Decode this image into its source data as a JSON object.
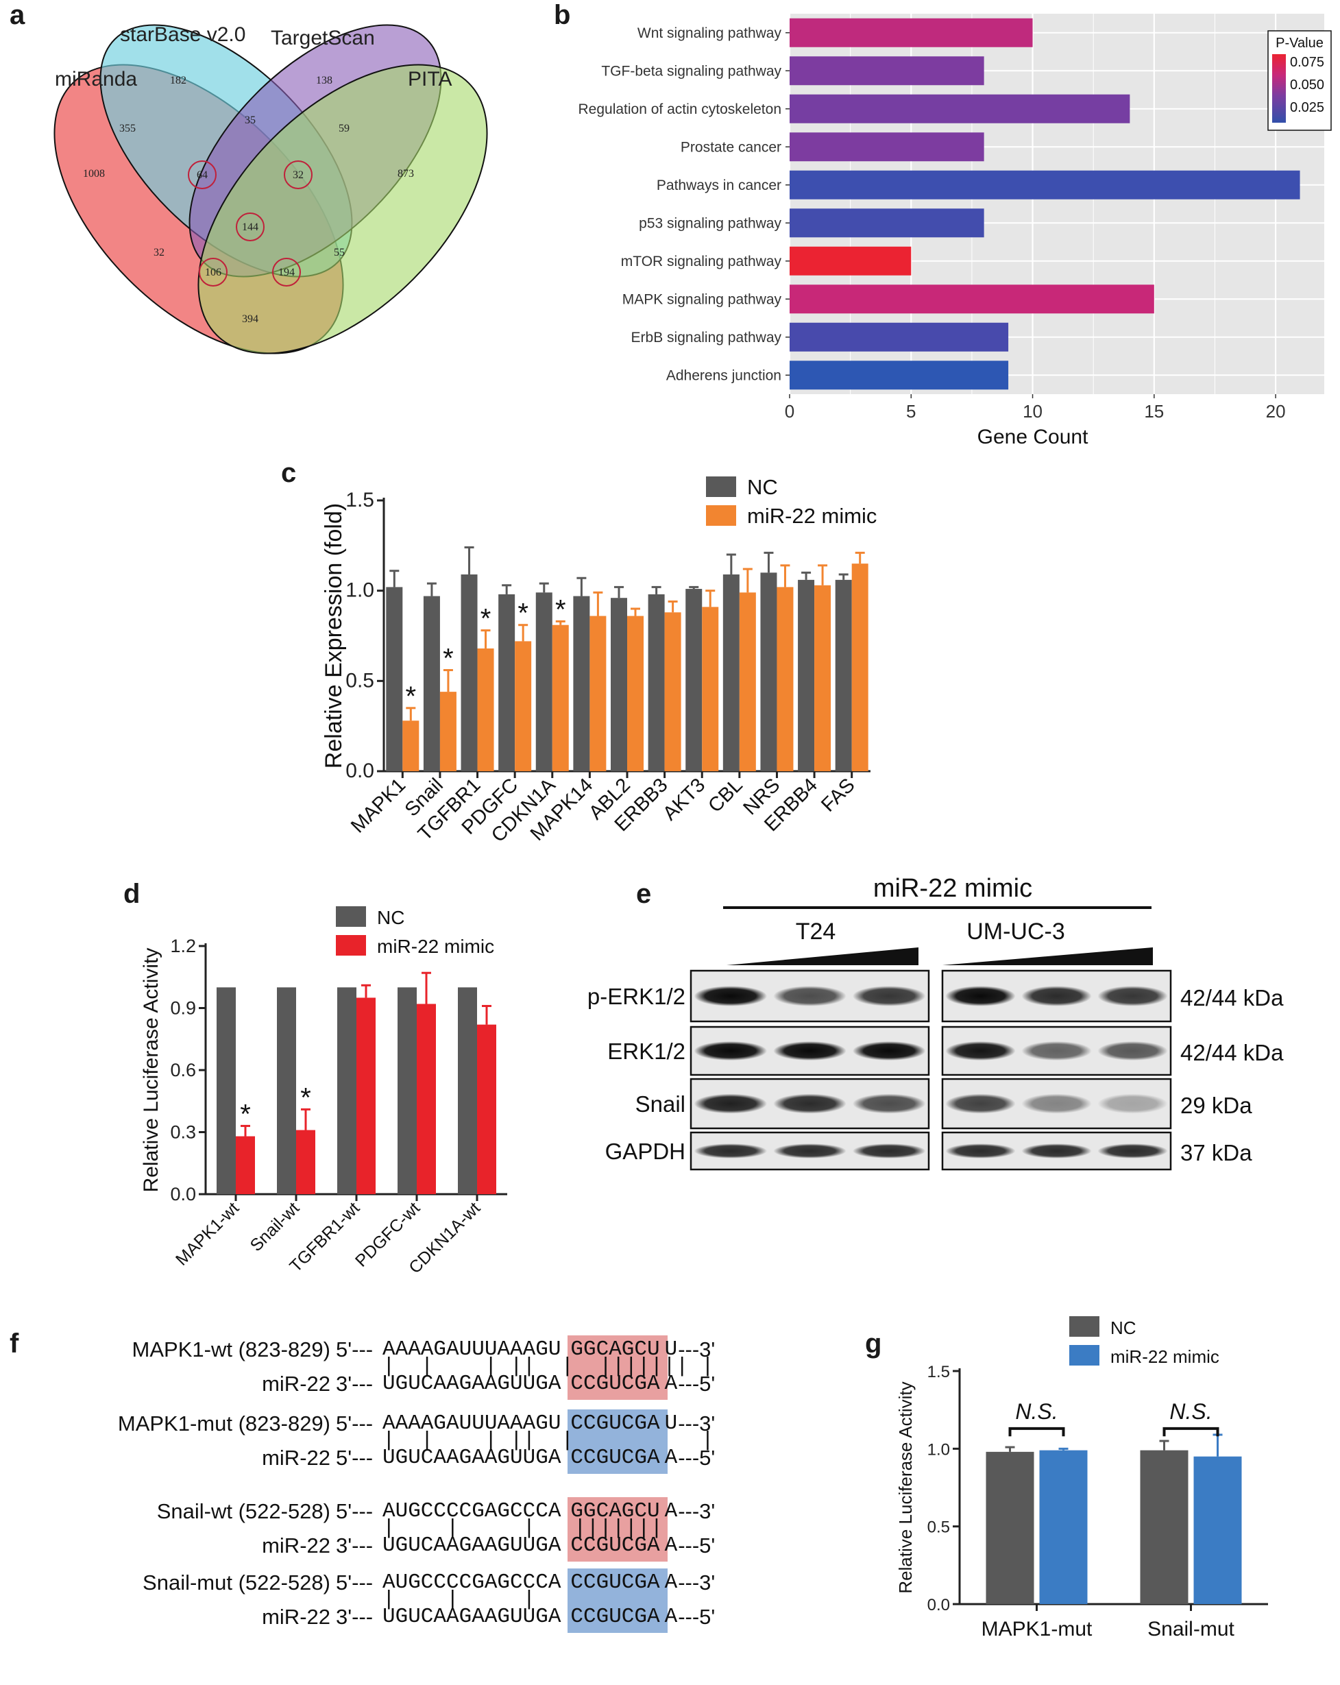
{
  "panels": {
    "a": "a",
    "b": "b",
    "c": "c",
    "d": "d",
    "e": "e",
    "f": "f",
    "g": "g"
  },
  "venn": {
    "sets": [
      "miRanda",
      "starBase v2.0",
      "TargetScan",
      "PITA"
    ],
    "regions": {
      "miRanda_only": "1008",
      "starBase_only": "182",
      "TargetScan_only": "138",
      "PITA_only": "873",
      "miRanda_starBase": "355",
      "starBase_TargetScan": "35",
      "TargetScan_PITA": "59",
      "miRanda_starBase_TargetScan": "64",
      "starBase_TargetScan_PITA": "32",
      "all_four": "144",
      "miRanda_TargetScan": "32",
      "starBase_PITA": "55",
      "miRanda_TargetScan_PITA": "106",
      "miRanda_starBase_PITA": "194",
      "miRanda_PITA": "394"
    }
  },
  "chart_data": [
    {
      "id": "b",
      "type": "bar",
      "orientation": "horizontal",
      "categories": [
        "Wnt signaling pathway",
        "TGF-beta signaling pathway",
        "Regulation of actin cytoskeleton",
        "Prostate cancer",
        "Pathways in cancer",
        "p53 signaling pathway",
        "mTOR signaling pathway",
        "MAPK signaling pathway",
        "ErbB signaling pathway",
        "Adherens junction"
      ],
      "values": [
        10,
        8,
        14,
        8,
        21,
        8,
        5,
        15,
        9,
        9
      ],
      "pvalues": [
        0.06,
        0.045,
        0.042,
        0.045,
        0.018,
        0.02,
        0.085,
        0.062,
        0.022,
        0.012
      ],
      "xlabel": "Gene Count",
      "xlim": [
        0,
        22
      ],
      "xticks": [
        "0",
        "5",
        "10",
        "15",
        "20"
      ],
      "legend": {
        "title": "P-Value",
        "labels": [
          "0.075",
          "0.050",
          "0.025"
        ]
      }
    },
    {
      "id": "c",
      "type": "bar",
      "categories": [
        "MAPK1",
        "Snail",
        "TGFBR1",
        "PDGFC",
        "CDKN1A",
        "MAPK14",
        "ABL2",
        "ERBB3",
        "AKT3",
        "CBL",
        "NRS",
        "ERBB4",
        "FAS"
      ],
      "series": [
        {
          "name": "NC",
          "color": "#595959",
          "values": [
            1.02,
            0.97,
            1.09,
            0.98,
            0.99,
            0.97,
            0.96,
            0.98,
            1.01,
            1.09,
            1.1,
            1.06,
            1.06
          ],
          "errors": [
            0.09,
            0.07,
            0.15,
            0.05,
            0.05,
            0.1,
            0.06,
            0.04,
            0.01,
            0.11,
            0.11,
            0.04,
            0.03
          ]
        },
        {
          "name": "miR-22 mimic",
          "color": "#f28530",
          "values": [
            0.28,
            0.44,
            0.68,
            0.72,
            0.81,
            0.86,
            0.86,
            0.88,
            0.91,
            0.99,
            1.02,
            1.03,
            1.15
          ],
          "errors": [
            0.07,
            0.12,
            0.1,
            0.09,
            0.02,
            0.13,
            0.04,
            0.06,
            0.09,
            0.13,
            0.12,
            0.11,
            0.06
          ]
        }
      ],
      "significant": [
        "*",
        "*",
        "*",
        "*",
        "*",
        "",
        "",
        "",
        "",
        "",
        "",
        "",
        ""
      ],
      "ylabel": "Relative Expression (fold)",
      "ylim": [
        0,
        1.5
      ],
      "yticks": [
        "0.0",
        "0.5",
        "1.0",
        "1.5"
      ]
    },
    {
      "id": "d",
      "type": "bar",
      "categories": [
        "MAPK1-wt",
        "Snail-wt",
        "TGFBR1-wt",
        "PDGFC-wt",
        "CDKN1A-wt"
      ],
      "series": [
        {
          "name": "NC",
          "color": "#595959",
          "values": [
            1.0,
            1.0,
            1.0,
            1.0,
            1.0
          ],
          "errors": [
            0,
            0,
            0,
            0,
            0
          ]
        },
        {
          "name": "miR-22 mimic",
          "color": "#e8232a",
          "values": [
            0.28,
            0.31,
            0.95,
            0.92,
            0.82
          ],
          "errors": [
            0.05,
            0.1,
            0.06,
            0.15,
            0.09
          ]
        }
      ],
      "significant": [
        "*",
        "*",
        "",
        "",
        ""
      ],
      "ylabel": "Relative Luciferase Activity",
      "ylim": [
        0,
        1.2
      ],
      "yticks": [
        "0.0",
        "0.3",
        "0.6",
        "0.9",
        "1.2"
      ]
    },
    {
      "id": "g",
      "type": "bar",
      "categories": [
        "MAPK1-mut",
        "Snail-mut"
      ],
      "series": [
        {
          "name": "NC",
          "color": "#595959",
          "values": [
            0.98,
            0.99
          ],
          "errors": [
            0.03,
            0.06
          ]
        },
        {
          "name": "miR-22 mimic",
          "color": "#3b7cc4",
          "values": [
            0.99,
            0.95
          ],
          "errors": [
            0.01,
            0.14
          ]
        }
      ],
      "annotations": [
        "N.S.",
        "N.S."
      ],
      "ylabel": "Relative Luciferase Activity",
      "ylim": [
        0,
        1.5
      ],
      "yticks": [
        "0.0",
        "0.5",
        "1.0",
        "1.5"
      ]
    }
  ],
  "blot": {
    "header": "miR-22 mimic",
    "cell_lines": [
      "T24",
      "UM-UC-3"
    ],
    "rows": [
      {
        "label": "p-ERK1/2",
        "size": "42/44 kDa"
      },
      {
        "label": "ERK1/2",
        "size": "42/44 kDa"
      },
      {
        "label": "Snail",
        "size": "29 kDa"
      },
      {
        "label": "GAPDH",
        "size": "37 kDa"
      }
    ]
  },
  "sequences": [
    {
      "label": "MAPK1-wt (823-829)",
      "p5": "5'---",
      "seq": "AAAAGAUUUAAAGU",
      "seed": "GGCAGCU",
      "tail": "U",
      "p3": "---3'",
      "pair": "|  |    | ||  |  ||||||| |",
      "mlabel": "miR-22",
      "mp": "3'---",
      "mseq": "UGUCAAGAAGUUGA",
      "mseed": "CCGUCGA",
      "mtail": "A",
      "mend": "---5'",
      "color": "#e8a0a0"
    },
    {
      "label": "MAPK1-mut (823-829)",
      "p5": "5'---",
      "seq": "AAAAGAUUUAAAGU",
      "seed": "CCGUCGA",
      "tail": "U",
      "p3": "---3'",
      "pair": "|  |    | ||  |          |",
      "mlabel": "miR-22",
      "mp": "5'---",
      "mseq": "UGUCAAGAAGUUGA",
      "mseed": "CCGUCGA",
      "mtail": "A",
      "mend": "---5'",
      "color": "#93b3db"
    },
    {
      "label": "Snail-wt (522-528)",
      "p5": "5'---",
      "seq": "AUGCCCCGAGCCCA",
      "seed": "GGCAGCU",
      "tail": "A",
      "p3": "---3'",
      "pair": "|    |     |   |||||||  ",
      "mlabel": "miR-22",
      "mp": "3'---",
      "mseq": "UGUCAAGAAGUUGA",
      "mseed": "CCGUCGA",
      "mtail": "A",
      "mend": "---5'",
      "color": "#e8a0a0"
    },
    {
      "label": "Snail-mut (522-528)",
      "p5": "5'---",
      "seq": "AUGCCCCGAGCCCA",
      "seed": "CCGUCGA",
      "tail": "A",
      "p3": "---3'",
      "pair": "|    |     |              ",
      "mlabel": "miR-22",
      "mp": "3'---",
      "mseq": "UGUCAAGAAGUUGA",
      "mseed": "CCGUCGA",
      "mtail": "A",
      "mend": "---5'",
      "color": "#93b3db"
    }
  ]
}
